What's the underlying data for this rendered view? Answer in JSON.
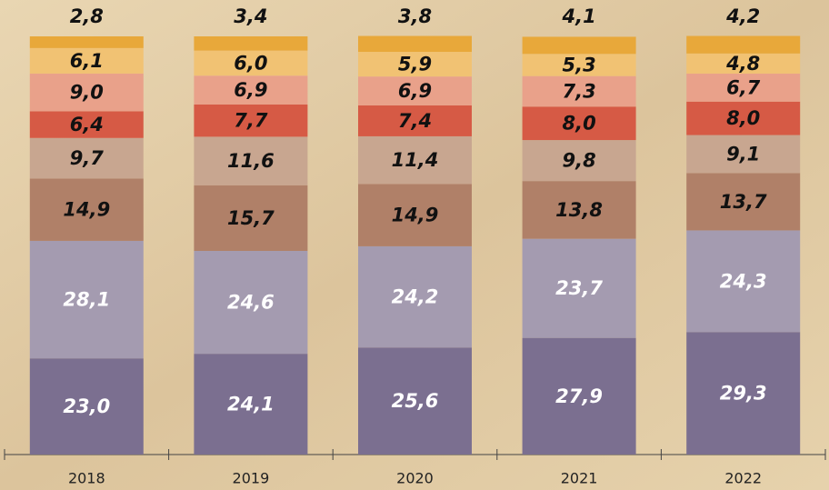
{
  "chart_data": {
    "type": "stacked_bar",
    "categories": [
      "2018",
      "2019",
      "2020",
      "2021",
      "2022"
    ],
    "ylim": [
      0,
      100
    ],
    "series": [
      {
        "color": "#7b6f90",
        "label_color": "#ffffff",
        "values": [
          23.0,
          24.1,
          25.6,
          27.9,
          29.3
        ],
        "value_labels": [
          "23,0",
          "24,1",
          "25,6",
          "27,9",
          "29,3"
        ]
      },
      {
        "color": "#a49bb0",
        "label_color": "#ffffff",
        "values": [
          28.1,
          24.6,
          24.2,
          23.7,
          24.3
        ],
        "value_labels": [
          "28,1",
          "24,6",
          "24,2",
          "23,7",
          "24,3"
        ]
      },
      {
        "color": "#b08068",
        "label_color": "#111111",
        "values": [
          14.9,
          15.7,
          14.9,
          13.8,
          13.7
        ],
        "value_labels": [
          "14,9",
          "15,7",
          "14,9",
          "13,8",
          "13,7"
        ]
      },
      {
        "color": "#c8a690",
        "label_color": "#111111",
        "values": [
          9.7,
          11.6,
          11.4,
          9.8,
          9.1
        ],
        "value_labels": [
          "9,7",
          "11,6",
          "11,4",
          "9,8",
          "9,1"
        ]
      },
      {
        "color": "#d65a45",
        "label_color": "#111111",
        "values": [
          6.4,
          7.7,
          7.4,
          8.0,
          8.0
        ],
        "value_labels": [
          "6,4",
          "7,7",
          "7,4",
          "8,0",
          "8,0"
        ]
      },
      {
        "color": "#e9a18a",
        "label_color": "#111111",
        "values": [
          9.0,
          6.9,
          6.9,
          7.3,
          6.7
        ],
        "value_labels": [
          "9,0",
          "6,9",
          "6,9",
          "7,3",
          "6,7"
        ]
      },
      {
        "color": "#f1c273",
        "label_color": "#111111",
        "values": [
          6.1,
          6.0,
          5.9,
          5.3,
          4.8
        ],
        "value_labels": [
          "6,1",
          "6,0",
          "5,9",
          "5,3",
          "4,8"
        ]
      },
      {
        "color": "#e8a83a",
        "label_color": "#111111",
        "values": [
          2.8,
          3.4,
          3.8,
          4.1,
          4.2
        ],
        "value_labels": [
          "2,8",
          "3,4",
          "3,8",
          "4,1",
          "4,2"
        ]
      }
    ]
  }
}
